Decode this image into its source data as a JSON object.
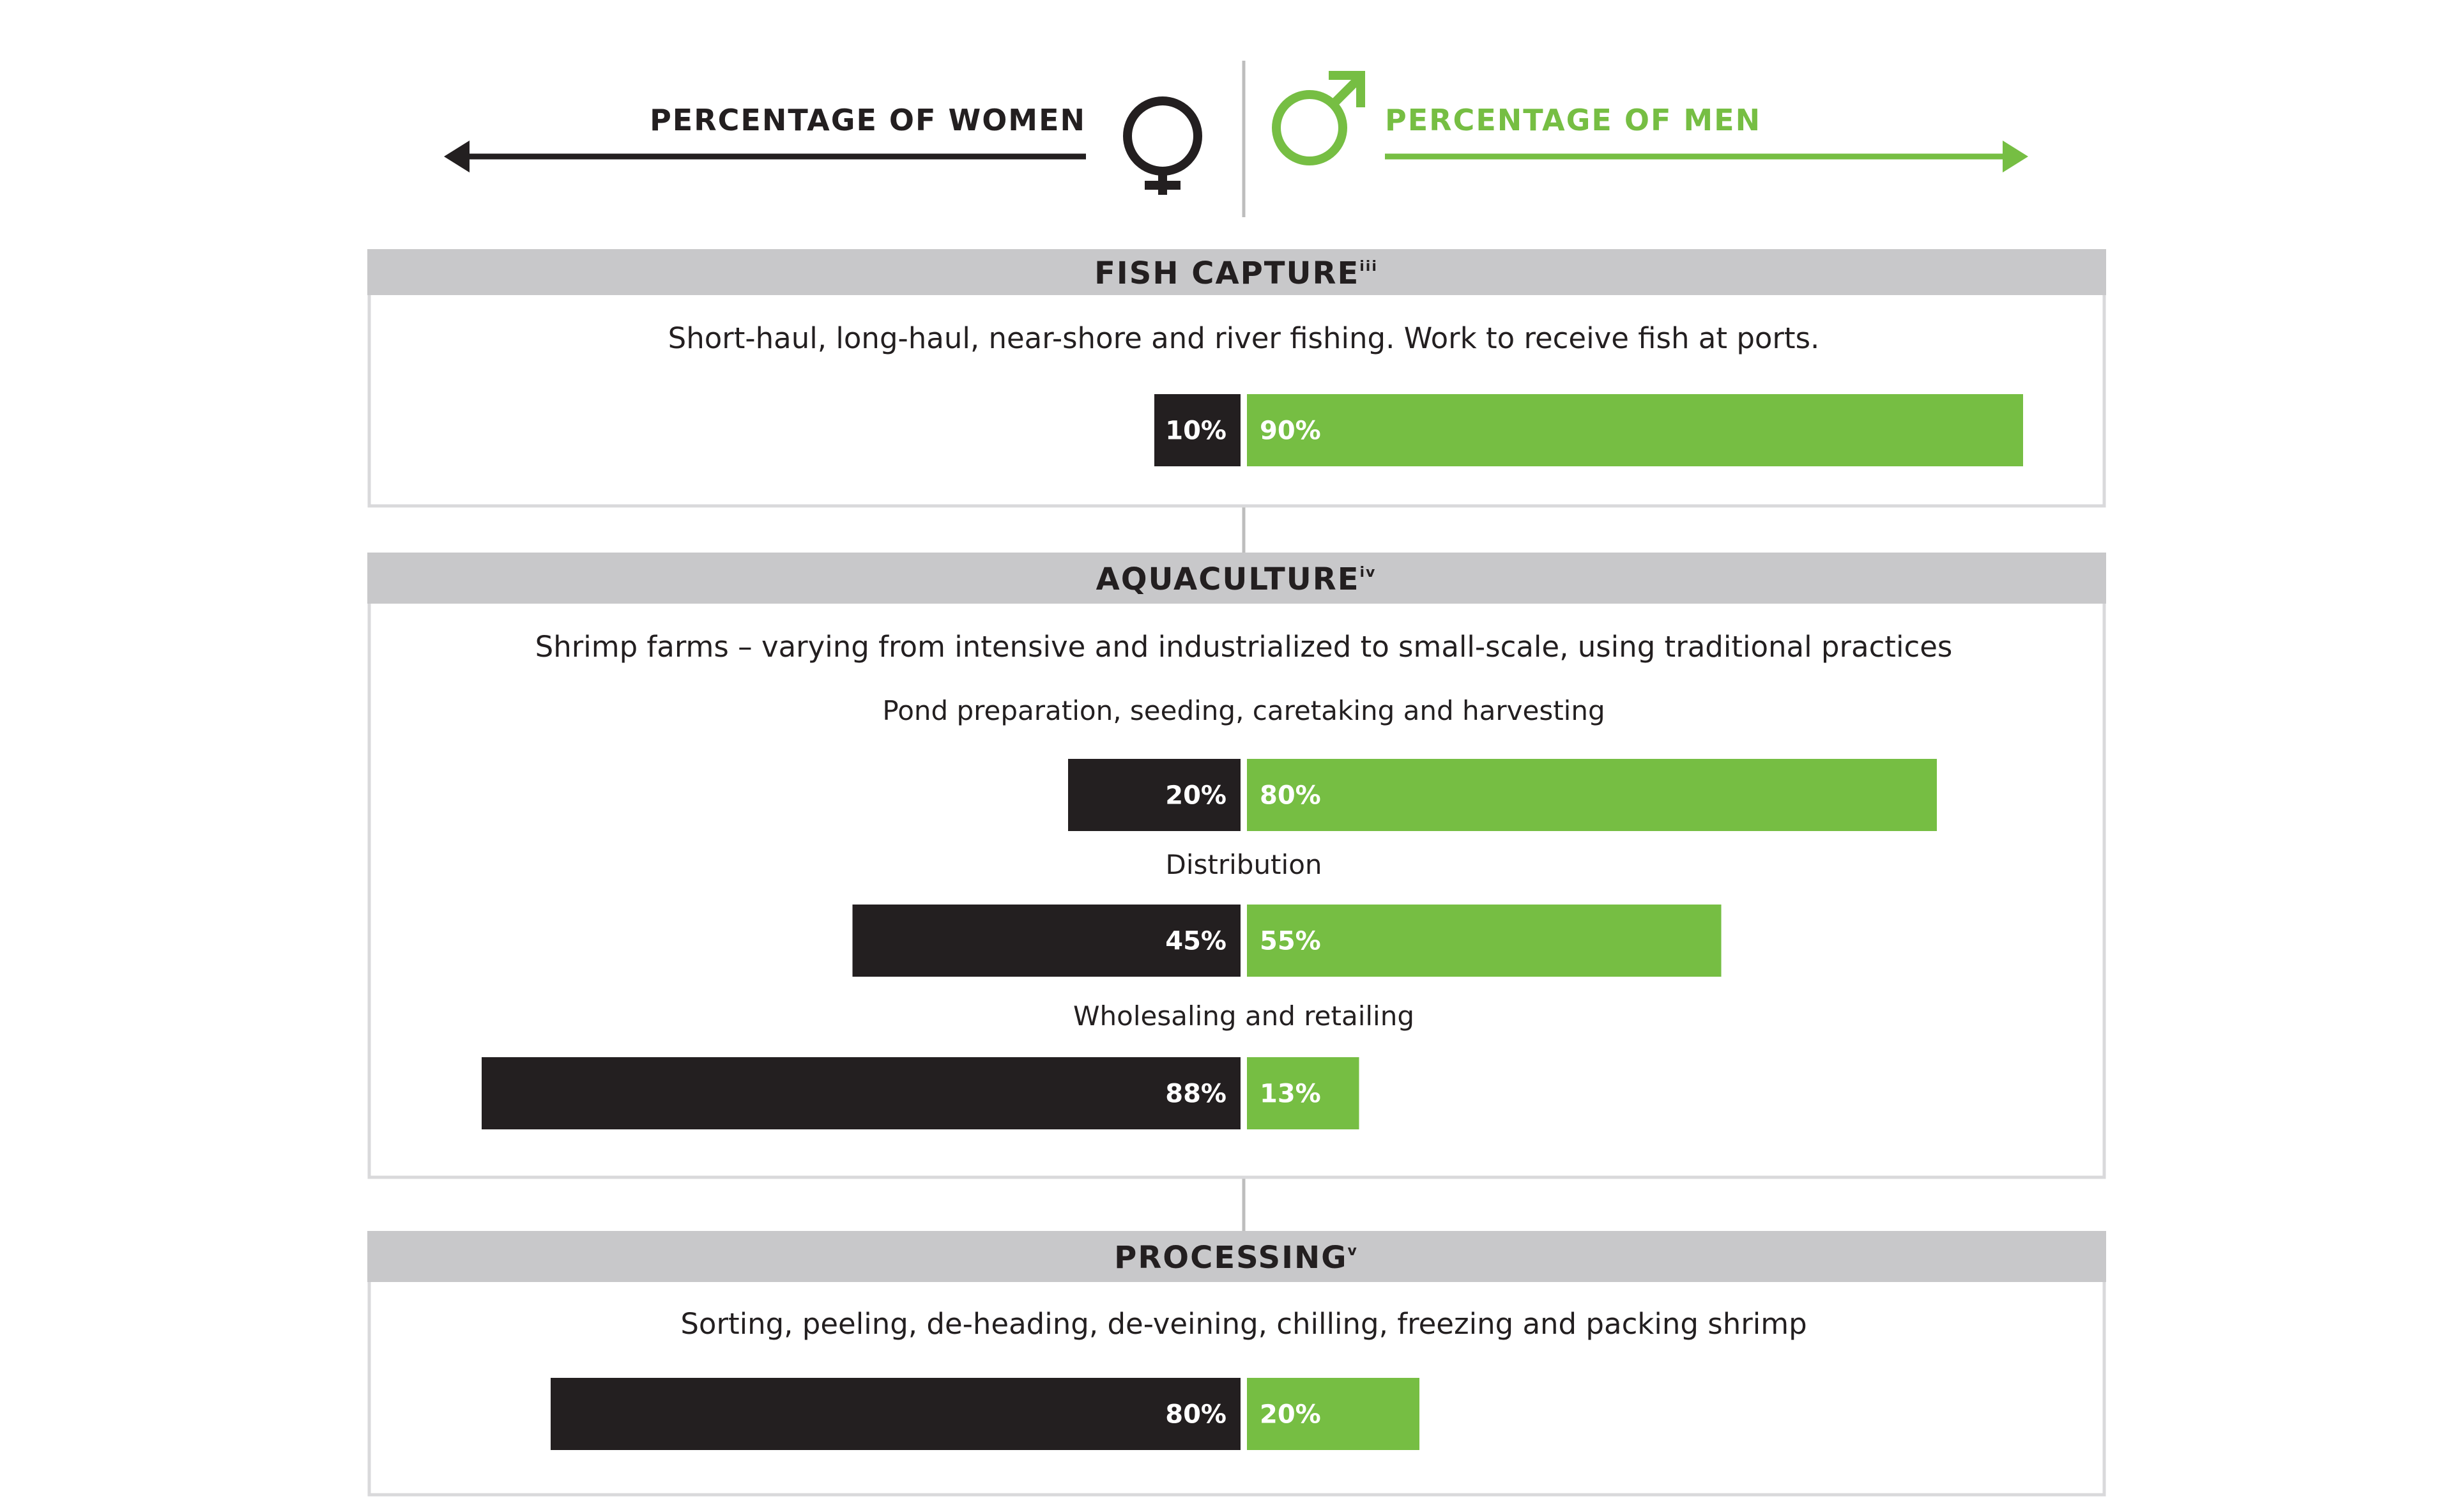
{
  "header": {
    "women_label": "PERCENTAGE OF WOMEN",
    "men_label": "PERCENTAGE OF MEN"
  },
  "colors": {
    "women": "#231f20",
    "men": "#76be43",
    "panel_header": "#c8c8ca",
    "panel_border": "#d9d9db",
    "axis": "#bdbdbd"
  },
  "chart_data": {
    "type": "bar",
    "orientation": "horizontal-diverging",
    "series": [
      {
        "name": "PERCENTAGE OF WOMEN",
        "color": "#231f20"
      },
      {
        "name": "PERCENTAGE OF MEN",
        "color": "#76be43"
      }
    ],
    "xlim": [
      0,
      100
    ],
    "sections": [
      {
        "title": "FISH CAPTURE",
        "superscript": "iii",
        "description": "Short-haul, long-haul, near-shore and river fishing. Work to receive fish at ports.",
        "rows": [
          {
            "label": "",
            "women": 10,
            "men": 90,
            "women_text": "10%",
            "men_text": "90%"
          }
        ]
      },
      {
        "title": "AQUACULTURE",
        "superscript": "iv",
        "description": "Shrimp farms – varying from intensive and industrialized to small-scale, using traditional practices",
        "rows": [
          {
            "label": "Pond preparation, seeding, caretaking and harvesting",
            "women": 20,
            "men": 80,
            "women_text": "20%",
            "men_text": "80%"
          },
          {
            "label": "Distribution",
            "women": 45,
            "men": 55,
            "women_text": "45%",
            "men_text": "55%"
          },
          {
            "label": "Wholesaling and retailing",
            "women": 88,
            "men": 13,
            "women_text": "88%",
            "men_text": "13%"
          }
        ]
      },
      {
        "title": "PROCESSING",
        "superscript": "v",
        "description": "Sorting, peeling, de-heading, de-veining, chilling, freezing and packing shrimp",
        "rows": [
          {
            "label": "",
            "women": 80,
            "men": 20,
            "women_text": "80%",
            "men_text": "20%"
          }
        ]
      }
    ]
  }
}
